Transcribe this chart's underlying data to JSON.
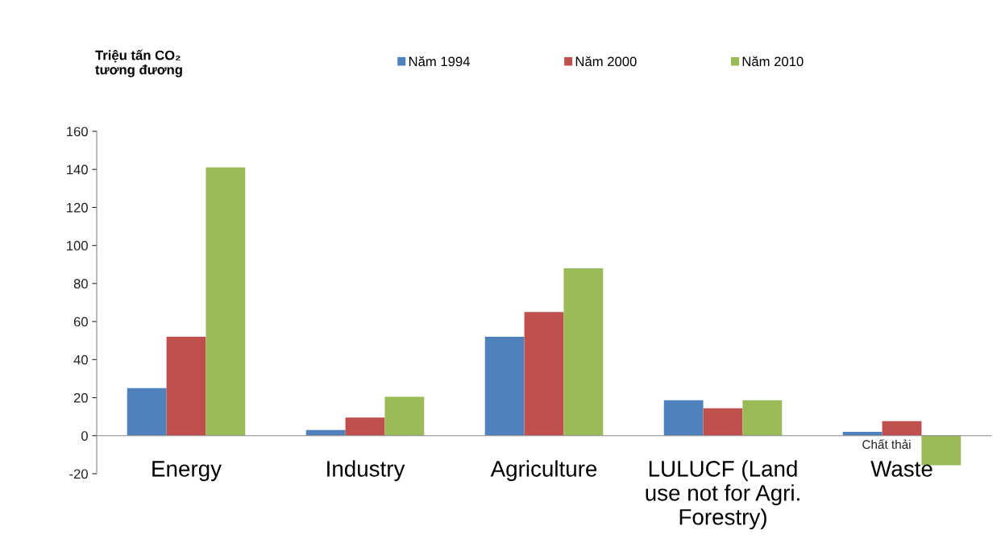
{
  "chart_data": {
    "type": "bar",
    "ylabel": "Triệu tấn CO₂\ntương đương",
    "categories": [
      "Energy",
      "Industry",
      "Agriculture",
      "LULUCF (Land\nuse not for Agri.\nForestry)",
      "Waste"
    ],
    "series": [
      {
        "name": "Năm 1994",
        "color": "#4f81bd",
        "values": [
          25,
          3,
          52,
          18.6,
          2
        ]
      },
      {
        "name": "Năm 2000",
        "color": "#c0504d",
        "values": [
          52,
          9.5,
          65,
          14.4,
          7.6
        ]
      },
      {
        "name": "Năm 2010",
        "color": "#9bbb59",
        "values": [
          141,
          20.5,
          88,
          18.6,
          -15.6
        ]
      }
    ],
    "ylim": [
      -20,
      160
    ],
    "yticks": [
      -20,
      0,
      20,
      40,
      60,
      80,
      100,
      120,
      140,
      160
    ],
    "grid": false,
    "legend": "top",
    "annotations": [
      "Chất thải"
    ]
  }
}
